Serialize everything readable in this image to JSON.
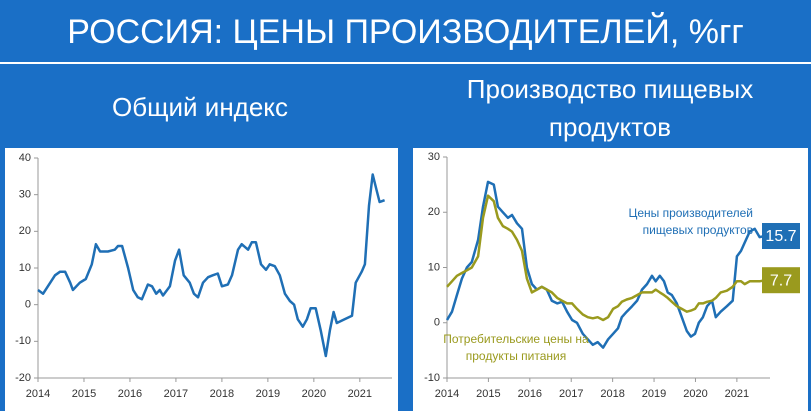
{
  "title": "РОССИЯ: ЦЕНЫ ПРОИЗВОДИТЕЛЕЙ, %гг",
  "chart_data": [
    {
      "type": "line",
      "title": "Общий индекс",
      "x": [
        2014.0,
        2014.11,
        2014.37,
        2014.48,
        2014.59,
        2014.7,
        2014.76,
        2014.91,
        2015.04,
        2015.17,
        2015.26,
        2015.35,
        2015.52,
        2015.67,
        2015.74,
        2015.83,
        2015.96,
        2016.07,
        2016.17,
        2016.26,
        2016.39,
        2016.48,
        2016.57,
        2016.65,
        2016.72,
        2016.87,
        2016.98,
        2017.07,
        2017.17,
        2017.3,
        2017.39,
        2017.48,
        2017.59,
        2017.7,
        2017.8,
        2017.91,
        2018.0,
        2018.13,
        2018.22,
        2018.35,
        2018.43,
        2018.57,
        2018.65,
        2018.74,
        2018.85,
        2018.96,
        2019.04,
        2019.15,
        2019.26,
        2019.37,
        2019.48,
        2019.57,
        2019.65,
        2019.76,
        2019.85,
        2019.93,
        2020.04,
        2020.15,
        2020.26,
        2020.35,
        2020.43,
        2020.5,
        2020.67,
        2020.83,
        2020.91,
        2021.04,
        2021.11,
        2021.2,
        2021.28,
        2021.37,
        2021.43,
        2021.54
      ],
      "series": [
        {
          "color": "#1f6fb5",
          "values": [
            4,
            3,
            8,
            9,
            9,
            6,
            4,
            6,
            7,
            11,
            16.5,
            14.5,
            14.5,
            15,
            16,
            16,
            10,
            4,
            2,
            1.5,
            5.5,
            5,
            3,
            4,
            2.5,
            5,
            12,
            15,
            8,
            6,
            3,
            2,
            6,
            7.5,
            8,
            8.5,
            5,
            5.5,
            8,
            15,
            16.5,
            15,
            17,
            17,
            11,
            9.5,
            11,
            10.5,
            8,
            3,
            1,
            0,
            -4,
            -6,
            -4,
            -1,
            -1,
            -7,
            -14,
            -7,
            -2,
            -5,
            -4,
            -3,
            6,
            9,
            11,
            27,
            35.5,
            31,
            28,
            28.5
          ]
        }
      ],
      "xlim": [
        2014,
        2021.7
      ],
      "xticks": [
        2014,
        2015,
        2016,
        2017,
        2018,
        2019,
        2020,
        2021
      ],
      "ylim": [
        -20,
        40
      ],
      "yticks": [
        -20,
        -10,
        0,
        10,
        20,
        30,
        40
      ]
    },
    {
      "type": "line",
      "title": "Производство пищевых продуктов",
      "x": [
        2014.0,
        2014.12,
        2014.24,
        2014.36,
        2014.48,
        2014.6,
        2014.75,
        2014.87,
        2014.99,
        2015.13,
        2015.23,
        2015.35,
        2015.47,
        2015.57,
        2015.69,
        2015.81,
        2015.93,
        2016.05,
        2016.17,
        2016.29,
        2016.41,
        2016.53,
        2016.66,
        2016.78,
        2016.9,
        2017.02,
        2017.14,
        2017.28,
        2017.4,
        2017.52,
        2017.64,
        2017.77,
        2017.89,
        2018.01,
        2018.13,
        2018.22,
        2018.34,
        2018.47,
        2018.59,
        2018.71,
        2018.83,
        2018.95,
        2019.04,
        2019.14,
        2019.24,
        2019.33,
        2019.43,
        2019.55,
        2019.67,
        2019.79,
        2019.89,
        2019.99,
        2020.08,
        2020.18,
        2020.28,
        2020.4,
        2020.49,
        2020.61,
        2020.76,
        2020.9,
        2021.0,
        2021.1,
        2021.19,
        2021.31,
        2021.43,
        2021.55,
        2021.68
      ],
      "series": [
        {
          "name": "Цены производителей пищевых продуктов",
          "color": "#1f6fb5",
          "values": [
            0.5,
            2,
            5,
            8,
            10,
            11,
            15,
            21,
            25.5,
            25,
            21,
            20,
            19,
            19.5,
            18,
            17,
            10,
            7,
            6,
            6.5,
            6,
            4,
            3.5,
            3.8,
            2,
            0.5,
            0,
            -2,
            -3,
            -4,
            -3.5,
            -4.5,
            -3,
            -2,
            -1,
            1,
            2,
            3,
            4,
            6,
            7,
            8.5,
            7.5,
            8.5,
            7.5,
            5.5,
            5,
            3.5,
            1,
            -1.5,
            -2.5,
            -2,
            0,
            1,
            3,
            4,
            1,
            2,
            3,
            4,
            12,
            13,
            14.5,
            16.5,
            17,
            15.5,
            15.7
          ]
        },
        {
          "name": "Потребительские цены на продукты питания",
          "color": "#9a9a1e",
          "values": [
            6.5,
            7.5,
            8.5,
            9,
            9.5,
            10,
            12,
            19,
            23,
            22,
            19,
            17.5,
            17,
            16.5,
            15,
            13,
            8,
            5.5,
            6,
            6.5,
            6,
            5.5,
            4.5,
            4,
            3.5,
            3.5,
            2.5,
            1.5,
            1,
            0.8,
            1,
            0.5,
            1,
            2.5,
            3,
            3.8,
            4.2,
            4.5,
            5,
            5.5,
            5.5,
            5.5,
            6,
            5.5,
            5,
            4.5,
            3.8,
            3,
            2.5,
            2,
            2.2,
            2.5,
            3.5,
            3.5,
            3.8,
            4,
            4.5,
            5.5,
            5.8,
            6.5,
            7.5,
            7.5,
            7,
            7.5,
            7.5,
            7.5,
            7.7
          ]
        }
      ],
      "end_labels": true,
      "xlim": [
        2014,
        2021.8
      ],
      "xticks": [
        2014,
        2015,
        2016,
        2017,
        2018,
        2019,
        2020,
        2021
      ],
      "ylim": [
        -10,
        30
      ],
      "yticks": [
        -10,
        0,
        10,
        20,
        30
      ]
    }
  ]
}
